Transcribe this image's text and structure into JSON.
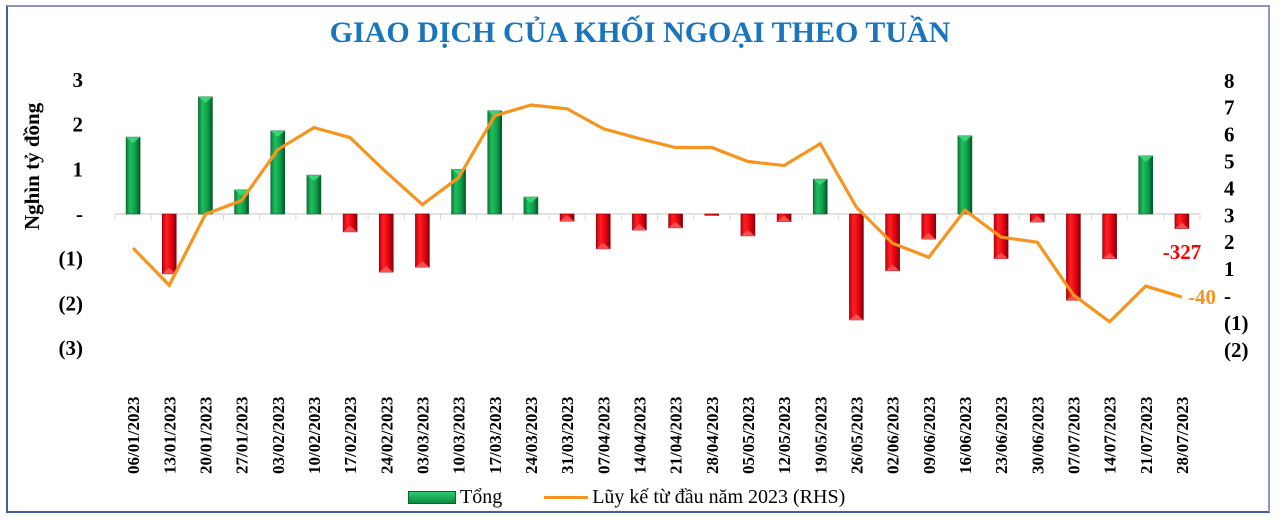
{
  "title": "GIAO DỊCH CỦA KHỐI NGOẠI THEO TUẦN",
  "y_axis_label": "Nghìn tỷ đồng",
  "legend": {
    "bar_label": "Tổng",
    "line_label": "Lũy kế từ đầu năm 2023 (RHS)"
  },
  "colors": {
    "title": "#1a75bc",
    "positive_bar": "#0f9d48",
    "negative_bar": "#e30613",
    "line": "#f7941d",
    "bar_annotation": "#ff0000",
    "line_annotation": "#f7941d",
    "frame": "#3f5f9e"
  },
  "annotations": {
    "last_bar": "-327",
    "last_line": "-40"
  },
  "chart_data": {
    "type": "bar+line",
    "title": "GIAO DỊCH CỦA KHỐI NGOẠI THEO TUẦN",
    "xlabel": "",
    "ylabel": "Nghìn tỷ đồng",
    "ylim": [
      -3,
      3
    ],
    "ylim_rhs": [
      -2,
      8
    ],
    "yticks_left": [
      "3",
      "2",
      "1",
      "-",
      "(1)",
      "(2)",
      "(3)"
    ],
    "yticks_right": [
      "8",
      "7",
      "6",
      "5",
      "4",
      "3",
      "2",
      "1",
      "-",
      "(1)",
      "(2)"
    ],
    "grid": false,
    "legend_position": "bottom",
    "categories": [
      "06/01/2023",
      "13/01/2023",
      "20/01/2023",
      "27/01/2023",
      "03/02/2023",
      "10/02/2023",
      "17/02/2023",
      "24/02/2023",
      "03/03/2023",
      "10/03/2023",
      "17/03/2023",
      "24/03/2023",
      "31/03/2023",
      "07/04/2023",
      "14/04/2023",
      "21/04/2023",
      "28/04/2023",
      "05/05/2023",
      "12/05/2023",
      "19/05/2023",
      "26/05/2023",
      "02/06/2023",
      "09/06/2023",
      "16/06/2023",
      "23/06/2023",
      "30/06/2023",
      "07/07/2023",
      "14/07/2023",
      "21/07/2023",
      "28/07/2023"
    ],
    "series": [
      {
        "name": "Tổng",
        "type": "bar",
        "axis": "left",
        "values": [
          1.72,
          -1.34,
          2.62,
          0.54,
          1.86,
          0.87,
          -0.4,
          -1.3,
          -1.19,
          1.0,
          2.31,
          0.38,
          -0.16,
          -0.78,
          -0.36,
          -0.31,
          -0.03,
          -0.49,
          -0.17,
          0.78,
          -2.37,
          -1.27,
          -0.56,
          1.75,
          -1.0,
          -0.18,
          -1.93,
          -1.0,
          1.3,
          -0.327
        ]
      },
      {
        "name": "Lũy kế từ đầu năm 2023 (RHS)",
        "type": "line",
        "axis": "right",
        "values": [
          1.78,
          0.4,
          3.04,
          3.55,
          5.44,
          6.26,
          5.89,
          4.6,
          3.4,
          4.4,
          6.7,
          7.1,
          6.96,
          6.22,
          5.85,
          5.52,
          5.52,
          5.0,
          4.85,
          5.66,
          3.3,
          1.96,
          1.44,
          3.19,
          2.19,
          2.0,
          0.04,
          -0.96,
          0.37,
          -0.04
        ]
      }
    ],
    "data_labels": [
      {
        "series": "Tổng",
        "category": "28/07/2023",
        "text": "-327"
      },
      {
        "series": "Lũy kế từ đầu năm 2023 (RHS)",
        "category": "28/07/2023",
        "text": "-40"
      }
    ]
  }
}
